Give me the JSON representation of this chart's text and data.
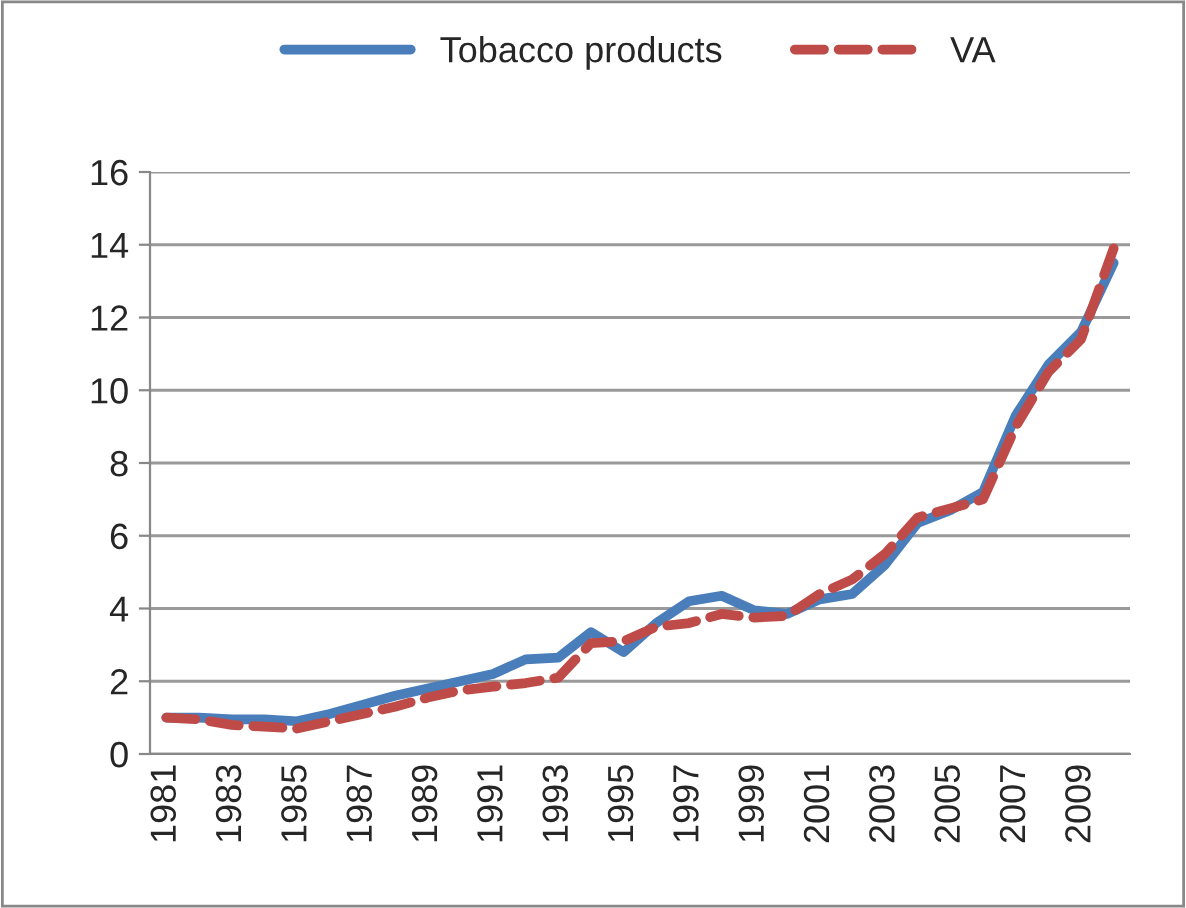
{
  "chart_data": {
    "type": "line",
    "categories": [
      "1981",
      null,
      "1983",
      null,
      "1985",
      null,
      "1987",
      null,
      "1989",
      null,
      "1991",
      null,
      "1993",
      null,
      "1995",
      null,
      "1997",
      null,
      "1999",
      null,
      "2001",
      null,
      "2003",
      null,
      "2005",
      null,
      "2007",
      null,
      "2009",
      null
    ],
    "series": [
      {
        "name": "Tobacco products",
        "color": "#4a7ebb",
        "line_style": "solid",
        "values": [
          1.0,
          1.0,
          0.95,
          0.95,
          0.9,
          1.1,
          1.35,
          1.6,
          1.8,
          2.0,
          2.2,
          2.6,
          2.65,
          3.35,
          2.8,
          3.6,
          4.2,
          4.35,
          3.95,
          3.85,
          4.25,
          4.4,
          5.2,
          6.35,
          6.7,
          7.2,
          9.3,
          10.7,
          11.6,
          13.5
        ]
      },
      {
        "name": "VA",
        "color": "#be4b48",
        "line_style": "dashed",
        "values": [
          1.0,
          0.95,
          0.8,
          0.75,
          0.7,
          0.9,
          1.1,
          1.3,
          1.55,
          1.75,
          1.85,
          1.95,
          2.1,
          3.05,
          3.1,
          3.5,
          3.6,
          3.85,
          3.75,
          3.8,
          4.4,
          4.8,
          5.5,
          6.5,
          6.75,
          7.0,
          9.0,
          10.5,
          11.4,
          13.9
        ]
      }
    ],
    "ylim": [
      0,
      16
    ],
    "yticks": [
      0,
      2,
      4,
      6,
      8,
      10,
      12,
      14,
      16
    ],
    "grid": "y",
    "legend": "top"
  }
}
